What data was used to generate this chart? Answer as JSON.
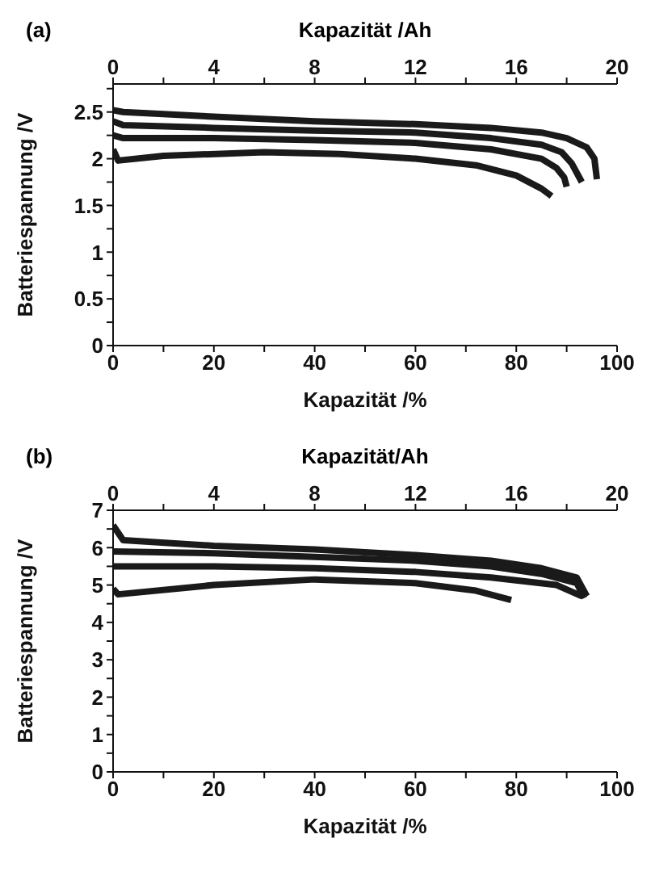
{
  "chart_data": [
    {
      "type": "line",
      "title": "(a)",
      "xlabel": "Kapazität /%",
      "ylabel": "Batteriespannung /V",
      "x2label": "Kapazität /Ah",
      "xlim": [
        0,
        100
      ],
      "xticks": [
        0,
        {
          "value": 10,
          "label": null
        },
        20,
        {
          "value": 30,
          "label": null
        },
        40,
        {
          "value": 50,
          "label": null
        },
        60,
        {
          "value": 70,
          "label": null
        },
        80,
        {
          "value": 90,
          "label": null
        },
        100
      ],
      "x2lim": [
        0,
        20
      ],
      "x2ticks": [
        0,
        {
          "value": 2,
          "label": null
        },
        4,
        {
          "value": 6,
          "label": null
        },
        8,
        {
          "value": 10,
          "label": null
        },
        12,
        {
          "value": 14,
          "label": null
        },
        16,
        {
          "value": 18,
          "label": null
        },
        20
      ],
      "ylim": [
        0,
        2.8
      ],
      "yticks": [
        0,
        {
          "value": 0.25,
          "label": null
        },
        0.5,
        {
          "value": 0.75,
          "label": null
        },
        1,
        {
          "value": 1.25,
          "label": null
        },
        1.5,
        {
          "value": 1.75,
          "label": null
        },
        2,
        {
          "value": 2.25,
          "label": null
        },
        2.5,
        {
          "value": 2.75,
          "label": null
        }
      ],
      "grid": false,
      "marker": "none",
      "line_style": "solid",
      "series": [
        {
          "color": "#1a1a1a",
          "x": [
            0,
            2,
            20,
            40,
            60,
            75,
            85,
            90,
            94,
            95.5,
            96
          ],
          "values": [
            2.52,
            2.5,
            2.45,
            2.4,
            2.37,
            2.33,
            2.28,
            2.22,
            2.12,
            2.0,
            1.78
          ]
        },
        {
          "color": "#1a1a1a",
          "x": [
            0,
            2,
            20,
            40,
            60,
            75,
            85,
            89,
            91,
            93
          ],
          "values": [
            2.4,
            2.36,
            2.33,
            2.3,
            2.28,
            2.22,
            2.15,
            2.07,
            1.95,
            1.75
          ]
        },
        {
          "color": "#1a1a1a",
          "x": [
            0,
            2,
            20,
            40,
            60,
            75,
            85,
            88,
            89.5,
            90
          ],
          "values": [
            2.25,
            2.22,
            2.22,
            2.2,
            2.17,
            2.1,
            2.0,
            1.9,
            1.8,
            1.7
          ]
        },
        {
          "color": "#1a1a1a",
          "x": [
            0,
            1,
            10,
            30,
            45,
            60,
            72,
            80,
            85,
            87
          ],
          "values": [
            2.1,
            1.98,
            2.03,
            2.07,
            2.05,
            2.0,
            1.93,
            1.82,
            1.68,
            1.6
          ]
        }
      ]
    },
    {
      "type": "line",
      "title": "(b)",
      "xlabel": "Kapazität /%",
      "ylabel": "Batteriespannung /V",
      "x2label": "Kapazität/Ah",
      "xlim": [
        0,
        100
      ],
      "xticks": [
        0,
        {
          "value": 10,
          "label": null
        },
        20,
        {
          "value": 30,
          "label": null
        },
        40,
        {
          "value": 50,
          "label": null
        },
        60,
        {
          "value": 70,
          "label": null
        },
        80,
        {
          "value": 90,
          "label": null
        },
        100
      ],
      "x2lim": [
        0,
        20
      ],
      "x2ticks": [
        0,
        {
          "value": 2,
          "label": null
        },
        4,
        {
          "value": 6,
          "label": null
        },
        8,
        {
          "value": 10,
          "label": null
        },
        12,
        {
          "value": 14,
          "label": null
        },
        16,
        {
          "value": 18,
          "label": null
        },
        20
      ],
      "ylim": [
        0,
        7
      ],
      "yticks": [
        0,
        {
          "value": 0.5,
          "label": null
        },
        1,
        {
          "value": 1.5,
          "label": null
        },
        2,
        {
          "value": 2.5,
          "label": null
        },
        3,
        {
          "value": 3.5,
          "label": null
        },
        4,
        {
          "value": 4.5,
          "label": null
        },
        5,
        {
          "value": 5.5,
          "label": null
        },
        6,
        {
          "value": 6.5,
          "label": null
        },
        7
      ],
      "grid": false,
      "marker": "none",
      "line_style": "solid",
      "series": [
        {
          "color": "#1a1a1a",
          "x": [
            0,
            2,
            20,
            40,
            60,
            75,
            85,
            92,
            94
          ],
          "values": [
            6.6,
            6.2,
            6.05,
            5.95,
            5.8,
            5.65,
            5.45,
            5.2,
            4.7
          ]
        },
        {
          "color": "#1a1a1a",
          "x": [
            0,
            20,
            40,
            60,
            75,
            85,
            92,
            93.5
          ],
          "values": [
            5.9,
            5.85,
            5.75,
            5.65,
            5.5,
            5.3,
            5.05,
            4.65
          ]
        },
        {
          "color": "#1a1a1a",
          "x": [
            0,
            20,
            40,
            60,
            75,
            88,
            93
          ],
          "values": [
            5.5,
            5.5,
            5.45,
            5.35,
            5.2,
            5.0,
            4.7
          ]
        },
        {
          "color": "#1a1a1a",
          "x": [
            0,
            1,
            20,
            40,
            60,
            72,
            79
          ],
          "values": [
            4.9,
            4.75,
            5.0,
            5.15,
            5.05,
            4.85,
            4.6
          ]
        }
      ]
    }
  ]
}
